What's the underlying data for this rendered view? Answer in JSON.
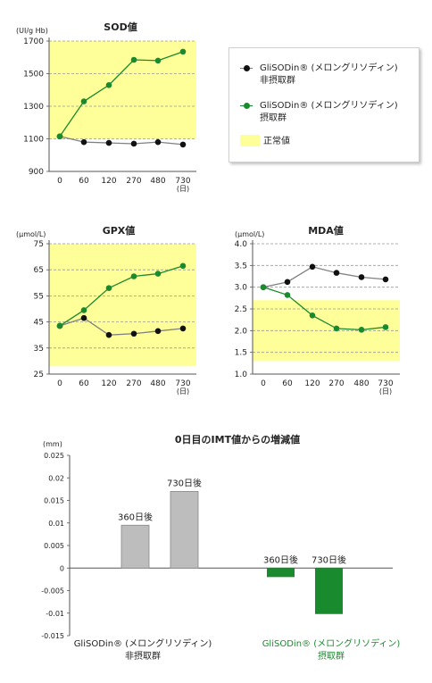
{
  "legend": {
    "items": [
      {
        "label": "GliSODin® (メロングリソディン)",
        "sub": "非摂取群",
        "color": "#808080",
        "dot": "#111111"
      },
      {
        "label": "GliSODin® (メロングリソディン)",
        "sub": "摂取群",
        "color": "#1a8a2e",
        "dot": "#1a8a2e"
      },
      {
        "label": "正常値",
        "sub": "",
        "color": "#ffff99",
        "dot": ""
      }
    ]
  },
  "chart_data": [
    {
      "type": "line",
      "title": "SOD値",
      "ylabel": "(UI/g Hb)",
      "categories": [
        "0",
        "60",
        "120",
        "270",
        "480",
        "730"
      ],
      "x_unit": "(日)",
      "yticks": [
        900,
        1100,
        1300,
        1500,
        1700
      ],
      "ylim": [
        900,
        1700
      ],
      "normal_range": [
        1100,
        1700
      ],
      "grid": "dashed",
      "series": [
        {
          "name": "非摂取群",
          "values": [
            1115,
            1080,
            1075,
            1070,
            1080,
            1065
          ]
        },
        {
          "name": "摂取群",
          "values": [
            1115,
            1330,
            1430,
            1585,
            1580,
            1635
          ]
        }
      ]
    },
    {
      "type": "line",
      "title": "GPX値",
      "ylabel": "(μmol/L)",
      "categories": [
        "0",
        "60",
        "120",
        "270",
        "480",
        "730"
      ],
      "x_unit": "(日)",
      "yticks": [
        25,
        35,
        45,
        55,
        65,
        75
      ],
      "ylim": [
        25,
        75
      ],
      "normal_range": [
        28,
        75
      ],
      "grid": "dashed",
      "series": [
        {
          "name": "非摂取群",
          "values": [
            43.5,
            46.5,
            40,
            40.5,
            41.5,
            42.5
          ]
        },
        {
          "name": "摂取群",
          "values": [
            43.5,
            49.5,
            58,
            62.5,
            63.5,
            66.5
          ]
        }
      ]
    },
    {
      "type": "line",
      "title": "MDA値",
      "ylabel": "(μmol/L)",
      "categories": [
        "0",
        "60",
        "120",
        "270",
        "480",
        "730"
      ],
      "x_unit": "(日)",
      "yticks": [
        "1.0",
        "1.5",
        "2.0",
        "2.5",
        "3.0",
        "3.5",
        "4.0"
      ],
      "ylim": [
        1.0,
        4.0
      ],
      "normal_range": [
        1.3,
        2.7
      ],
      "grid": "dashed",
      "series": [
        {
          "name": "非摂取群",
          "values": [
            3.0,
            3.12,
            3.47,
            3.33,
            3.23,
            3.18
          ]
        },
        {
          "name": "摂取群",
          "values": [
            3.0,
            2.82,
            2.35,
            2.05,
            2.02,
            2.08
          ]
        }
      ]
    },
    {
      "type": "bar",
      "title": "0日目のIMT値からの増減値",
      "ylabel": "(mm)",
      "yticks": [
        "0.025",
        "0.02",
        "0.015",
        "0.01",
        "0.005",
        "0",
        "-0.005",
        "-0.01",
        "-0.015"
      ],
      "ylim": [
        -0.015,
        0.025
      ],
      "groups": [
        {
          "name": "GliSODin® (メロングリソディン)",
          "sub": "非摂取群",
          "color": "#222222"
        },
        {
          "name": "GliSODin® (メロングリソディン)",
          "sub": "摂取群",
          "color": "#1a8a2e"
        }
      ],
      "bars": [
        {
          "group": 0,
          "label": "360日後",
          "value": 0.0095,
          "fill": "#bdbdbd"
        },
        {
          "group": 0,
          "label": "730日後",
          "value": 0.017,
          "fill": "#bdbdbd"
        },
        {
          "group": 1,
          "label": "360日後",
          "value": -0.002,
          "fill": "#1a8a2e"
        },
        {
          "group": 1,
          "label": "730日後",
          "value": -0.0102,
          "fill": "#1a8a2e"
        }
      ]
    }
  ]
}
